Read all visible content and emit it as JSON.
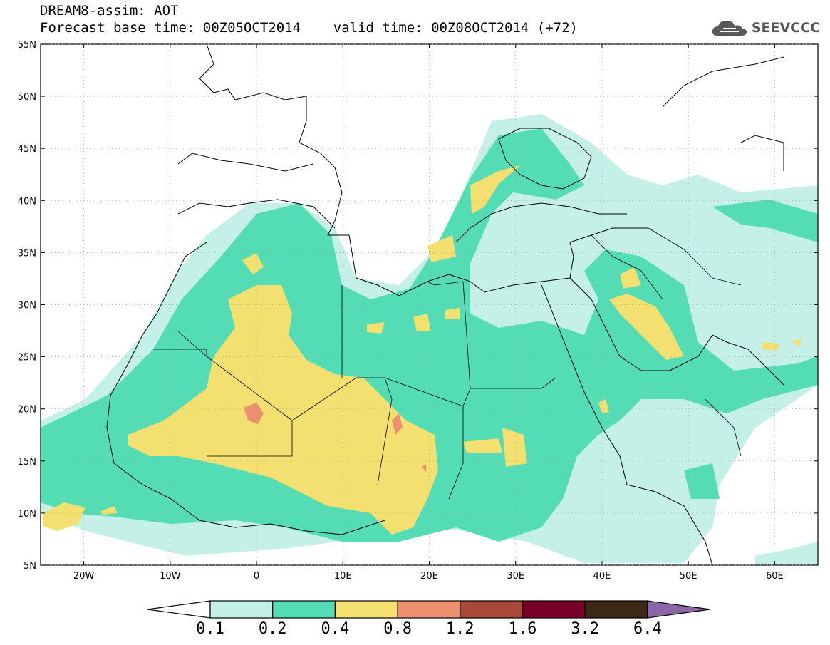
{
  "header": {
    "title_line1": "DREAM8-assim: AOT",
    "title_line2": "Forecast base time: 00Z05OCT2014    valid time: 00Z08OCT2014 (+72)"
  },
  "logo": {
    "icon": "cloud-icon",
    "text": "SEEVCCC"
  },
  "map": {
    "lon_range": [
      -25,
      65
    ],
    "lat_range": [
      5,
      55
    ],
    "lat_ticks": [
      {
        "value": 55,
        "label": "55N"
      },
      {
        "value": 50,
        "label": "50N"
      },
      {
        "value": 45,
        "label": "45N"
      },
      {
        "value": 40,
        "label": "40N"
      },
      {
        "value": 35,
        "label": "35N"
      },
      {
        "value": 30,
        "label": "30N"
      },
      {
        "value": 25,
        "label": "25N"
      },
      {
        "value": 20,
        "label": "20N"
      },
      {
        "value": 15,
        "label": "15N"
      },
      {
        "value": 10,
        "label": "10N"
      },
      {
        "value": 5,
        "label": "5N"
      }
    ],
    "lon_ticks": [
      {
        "value": -20,
        "label": "20W"
      },
      {
        "value": -10,
        "label": "10W"
      },
      {
        "value": 0,
        "label": "0"
      },
      {
        "value": 10,
        "label": "10E"
      },
      {
        "value": 20,
        "label": "20E"
      },
      {
        "value": 30,
        "label": "30E"
      },
      {
        "value": 40,
        "label": "40E"
      },
      {
        "value": 50,
        "label": "50E"
      },
      {
        "value": 60,
        "label": "60E"
      }
    ],
    "gridlines": true
  },
  "colorbar": {
    "ticks": [
      "0.1",
      "0.2",
      "0.4",
      "0.8",
      "1.2",
      "1.6",
      "3.2",
      "6.4"
    ],
    "colors": [
      "#ffffff",
      "#c4f0e8",
      "#54dcb4",
      "#f4e070",
      "#ec9070",
      "#a84838",
      "#780028",
      "#3c2814",
      "#8c64a8"
    ]
  }
}
